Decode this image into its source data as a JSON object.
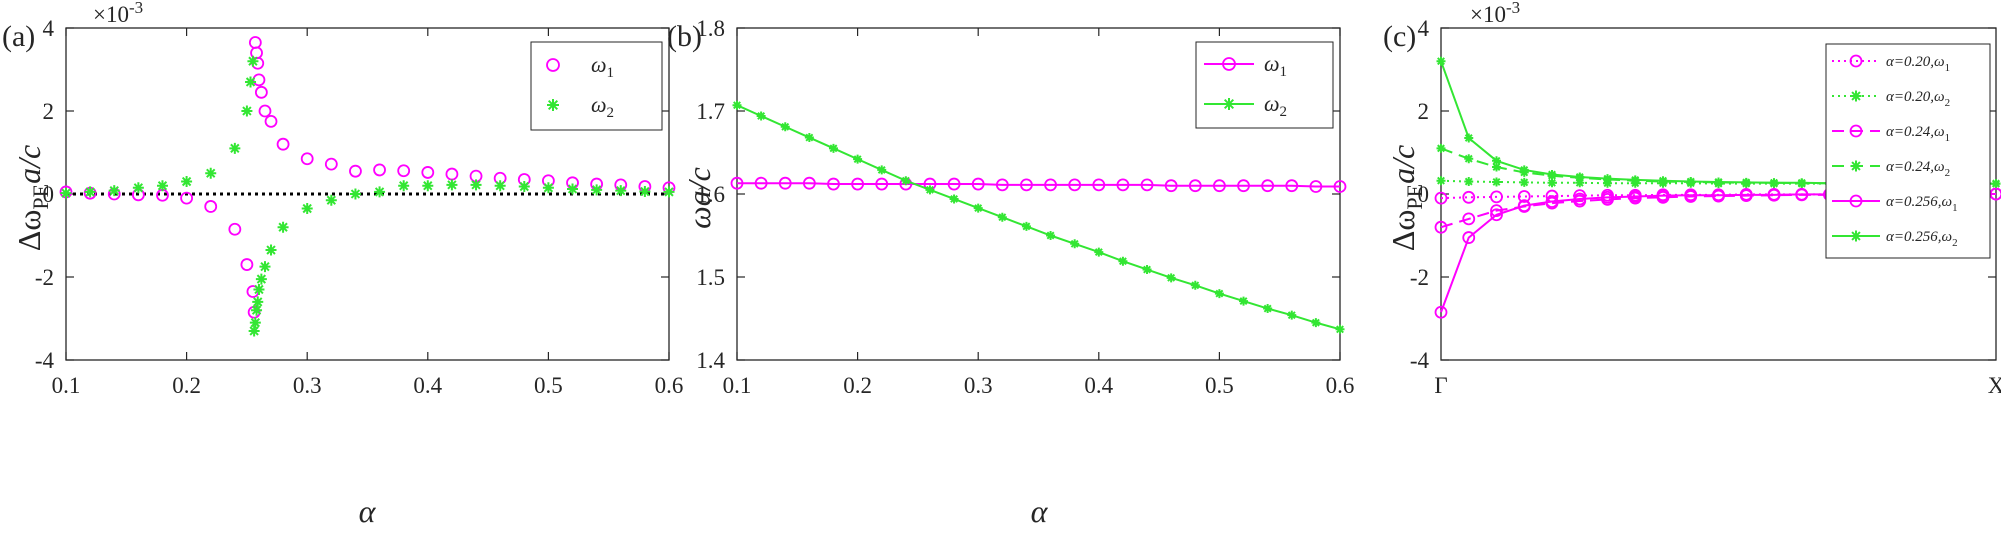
{
  "colors": {
    "magenta": "#ff00ff",
    "green": "#33e633",
    "axis": "#262626"
  },
  "chart_data": [
    {
      "type": "scatter",
      "panel_label": "(a)",
      "exponent_label": "×10",
      "exponent_power": "-3",
      "xlabel": "α",
      "ylabel_main": "Δω",
      "ylabel_sub": "PE",
      "ylabel_tail": "a/c",
      "xlim": [
        0.1,
        0.6
      ],
      "ylim": [
        -4,
        4
      ],
      "xticks": [
        "0.1",
        "0.2",
        "0.3",
        "0.4",
        "0.5",
        "0.6"
      ],
      "yticks": [
        "-4",
        "-2",
        "0",
        "2",
        "4"
      ],
      "xtick_values": [
        0.1,
        0.2,
        0.3,
        0.4,
        0.5,
        0.6
      ],
      "ytick_values": [
        -4,
        -2,
        0,
        2,
        4
      ],
      "reference_line": {
        "y": 0,
        "style": "dotted"
      },
      "legend_position": "top-right",
      "series": [
        {
          "name": "ω",
          "name_sub": "1",
          "marker": "circle",
          "line": "none",
          "x": [
            0.1,
            0.12,
            0.14,
            0.16,
            0.18,
            0.2,
            0.22,
            0.24,
            0.25,
            0.255,
            0.256,
            0.257,
            0.258,
            0.259,
            0.26,
            0.262,
            0.265,
            0.27,
            0.28,
            0.3,
            0.32,
            0.34,
            0.36,
            0.38,
            0.4,
            0.42,
            0.44,
            0.46,
            0.48,
            0.5,
            0.52,
            0.54,
            0.56,
            0.58,
            0.6
          ],
          "y": [
            0.05,
            0.02,
            0.0,
            -0.02,
            -0.03,
            -0.1,
            -0.3,
            -0.85,
            -1.7,
            -2.35,
            -2.85,
            3.65,
            3.4,
            3.15,
            2.75,
            2.45,
            2.0,
            1.75,
            1.2,
            0.85,
            0.72,
            0.55,
            0.58,
            0.56,
            0.52,
            0.48,
            0.43,
            0.38,
            0.35,
            0.32,
            0.27,
            0.24,
            0.22,
            0.18,
            0.15
          ]
        },
        {
          "name": "ω",
          "name_sub": "2",
          "marker": "asterisk",
          "line": "none",
          "x": [
            0.1,
            0.12,
            0.14,
            0.16,
            0.18,
            0.2,
            0.22,
            0.24,
            0.25,
            0.253,
            0.255,
            0.256,
            0.257,
            0.258,
            0.259,
            0.26,
            0.262,
            0.265,
            0.27,
            0.28,
            0.3,
            0.32,
            0.34,
            0.36,
            0.38,
            0.4,
            0.42,
            0.44,
            0.46,
            0.48,
            0.5,
            0.52,
            0.54,
            0.56,
            0.58,
            0.6
          ],
          "y": [
            0.02,
            0.05,
            0.08,
            0.15,
            0.2,
            0.3,
            0.5,
            1.1,
            2.0,
            2.7,
            3.2,
            -3.3,
            -3.1,
            -2.8,
            -2.6,
            -2.3,
            -2.05,
            -1.75,
            -1.35,
            -0.8,
            -0.35,
            -0.15,
            0.0,
            0.05,
            0.2,
            0.2,
            0.22,
            0.22,
            0.2,
            0.18,
            0.15,
            0.12,
            0.1,
            0.08,
            0.06,
            0.05
          ]
        }
      ]
    },
    {
      "type": "line",
      "panel_label": "(b)",
      "xlabel": "α",
      "ylabel": "ωa/c",
      "xlim": [
        0.1,
        0.6
      ],
      "ylim": [
        1.4,
        1.8
      ],
      "xticks": [
        "0.1",
        "0.2",
        "0.3",
        "0.4",
        "0.5",
        "0.6"
      ],
      "yticks": [
        "1.4",
        "1.5",
        "1.6",
        "1.7",
        "1.8"
      ],
      "xtick_values": [
        0.1,
        0.2,
        0.3,
        0.4,
        0.5,
        0.6
      ],
      "ytick_values": [
        1.4,
        1.5,
        1.6,
        1.7,
        1.8
      ],
      "legend_position": "top-right",
      "x": [
        0.1,
        0.12,
        0.14,
        0.16,
        0.18,
        0.2,
        0.22,
        0.24,
        0.26,
        0.28,
        0.3,
        0.32,
        0.34,
        0.36,
        0.38,
        0.4,
        0.42,
        0.44,
        0.46,
        0.48,
        0.5,
        0.52,
        0.54,
        0.56,
        0.58,
        0.6
      ],
      "series": [
        {
          "name": "ω",
          "name_sub": "1",
          "marker": "circle",
          "line": "solid",
          "y": [
            1.613,
            1.613,
            1.613,
            1.613,
            1.612,
            1.612,
            1.612,
            1.612,
            1.612,
            1.612,
            1.612,
            1.611,
            1.611,
            1.611,
            1.611,
            1.611,
            1.611,
            1.611,
            1.61,
            1.61,
            1.61,
            1.61,
            1.61,
            1.61,
            1.609,
            1.609
          ]
        },
        {
          "name": "ω",
          "name_sub": "2",
          "marker": "asterisk",
          "line": "solid",
          "y": [
            1.707,
            1.694,
            1.681,
            1.668,
            1.655,
            1.642,
            1.629,
            1.616,
            1.605,
            1.594,
            1.583,
            1.572,
            1.561,
            1.55,
            1.54,
            1.53,
            1.519,
            1.509,
            1.499,
            1.49,
            1.48,
            1.471,
            1.462,
            1.454,
            1.445,
            1.437
          ]
        }
      ]
    },
    {
      "type": "line",
      "panel_label": "(c)",
      "exponent_label": "×10",
      "exponent_power": "-3",
      "ylabel_main": "Δω",
      "ylabel_sub": "PE",
      "ylabel_tail": "a/c",
      "xlim": [
        0,
        1
      ],
      "ylim": [
        -4,
        4
      ],
      "xticks": [
        "Γ",
        "X"
      ],
      "xtick_values": [
        0,
        1
      ],
      "yticks": [
        "-4",
        "-2",
        "0",
        "2",
        "4"
      ],
      "ytick_values": [
        -4,
        -2,
        0,
        2,
        4
      ],
      "legend_position": "top-right",
      "x": [
        0.0,
        0.05,
        0.1,
        0.15,
        0.2,
        0.25,
        0.3,
        0.35,
        0.4,
        0.45,
        0.5,
        0.55,
        0.6,
        0.65,
        0.7,
        0.75,
        0.8,
        0.85,
        0.9,
        0.95,
        1.0
      ],
      "series": [
        {
          "name": "α=0.20,ω",
          "name_sub": "1",
          "color": "magenta",
          "line": "dotted",
          "marker": "circle",
          "y": [
            -0.1,
            -0.08,
            -0.07,
            -0.06,
            -0.05,
            -0.04,
            -0.03,
            -0.03,
            -0.02,
            -0.02,
            -0.02,
            -0.01,
            -0.01,
            -0.01,
            -0.01,
            0.0,
            0.0,
            0.0,
            0.0,
            0.0,
            0.0
          ]
        },
        {
          "name": "α=0.20,ω",
          "name_sub": "2",
          "color": "green",
          "line": "dotted",
          "marker": "asterisk",
          "y": [
            0.32,
            0.3,
            0.29,
            0.28,
            0.27,
            0.27,
            0.26,
            0.26,
            0.26,
            0.26,
            0.25,
            0.25,
            0.25,
            0.25,
            0.25,
            0.25,
            0.25,
            0.25,
            0.25,
            0.25,
            0.25
          ]
        },
        {
          "name": "α=0.24,ω",
          "name_sub": "1",
          "color": "magenta",
          "line": "dashed",
          "marker": "circle",
          "y": [
            -0.8,
            -0.6,
            -0.4,
            -0.3,
            -0.22,
            -0.17,
            -0.13,
            -0.1,
            -0.08,
            -0.06,
            -0.05,
            -0.04,
            -0.03,
            -0.02,
            -0.02,
            -0.01,
            -0.01,
            0.0,
            0.0,
            0.0,
            0.0
          ]
        },
        {
          "name": "α=0.24,ω",
          "name_sub": "2",
          "color": "green",
          "line": "dashed",
          "marker": "asterisk",
          "y": [
            1.1,
            0.85,
            0.65,
            0.52,
            0.44,
            0.39,
            0.35,
            0.32,
            0.3,
            0.29,
            0.28,
            0.27,
            0.27,
            0.26,
            0.26,
            0.26,
            0.26,
            0.25,
            0.25,
            0.25,
            0.25
          ]
        },
        {
          "name": "α=0.256,ω",
          "name_sub": "1",
          "color": "magenta",
          "line": "solid",
          "marker": "circle",
          "y": [
            -2.85,
            -1.05,
            -0.5,
            -0.28,
            -0.18,
            -0.12,
            -0.08,
            -0.06,
            -0.04,
            -0.03,
            -0.03,
            -0.02,
            -0.02,
            -0.01,
            -0.01,
            -0.01,
            0.0,
            0.0,
            0.0,
            0.0,
            0.0
          ]
        },
        {
          "name": "α=0.256,ω",
          "name_sub": "2",
          "color": "green",
          "line": "solid",
          "marker": "asterisk",
          "y": [
            3.2,
            1.35,
            0.8,
            0.58,
            0.47,
            0.41,
            0.37,
            0.34,
            0.32,
            0.3,
            0.29,
            0.28,
            0.27,
            0.27,
            0.26,
            0.26,
            0.26,
            0.25,
            0.25,
            0.25,
            0.25
          ]
        }
      ]
    }
  ]
}
